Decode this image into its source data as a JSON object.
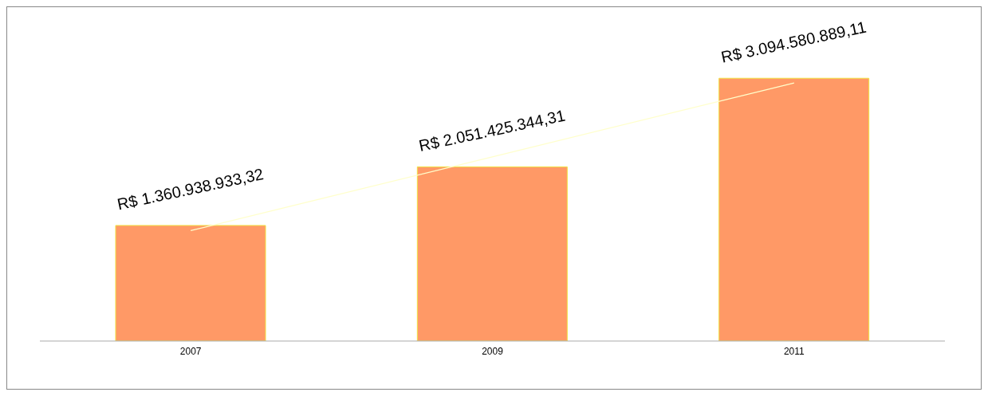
{
  "chart_data": {
    "type": "bar",
    "categories": [
      "2007",
      "2009",
      "2011"
    ],
    "series": [
      {
        "color": "#ff9966",
        "values": [
          1360938933.32,
          2051425344.31,
          3094580889.11
        ],
        "value_labels": [
          "R$ 1.360.938.933,32",
          "R$ 2.051.425.344,31",
          "R$ 3.094.580.889,11"
        ]
      },
      {
        "type": "line",
        "color": "#ffffcc",
        "values": [
          1300000000,
          2170000000,
          3040000000
        ]
      }
    ],
    "grid": false,
    "legend": false
  }
}
